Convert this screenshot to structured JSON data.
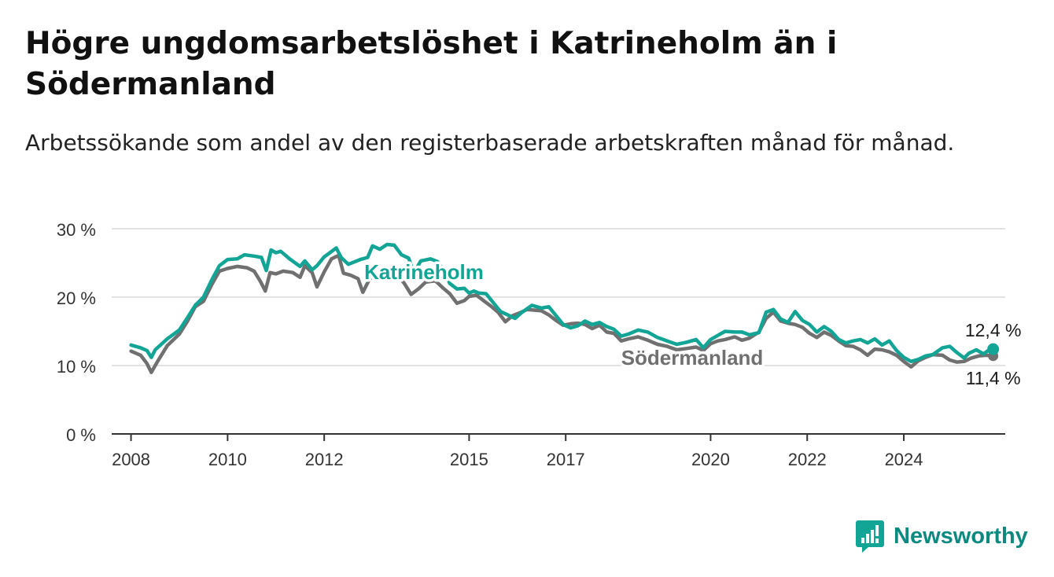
{
  "header": {
    "title": "Högre ungdomsarbetslöshet i Katrineholm än i Södermanland",
    "subtitle": "Arbetssökande som andel av den registerbaserade arbetskraften månad för månad."
  },
  "brand": {
    "name": "Newsworthy",
    "icon": "bar-chart-speech-bubble-icon",
    "color": "#0c8a80"
  },
  "chart_data": {
    "type": "line",
    "x_tick_labels": [
      "2008",
      "2010",
      "2012",
      "2015",
      "2017",
      "2020",
      "2022",
      "2024"
    ],
    "y_tick_labels": [
      "0 %",
      "10 %",
      "20 %",
      "30 %"
    ],
    "ylim": [
      0,
      30
    ],
    "xlim": [
      2007.6,
      2026.1
    ],
    "grid": "horizontal",
    "series": [
      {
        "name": "Katrineholm",
        "color": "#12a596",
        "end_label": "12,4 %",
        "points": [
          [
            2008.0,
            13.0
          ],
          [
            2008.2,
            12.6
          ],
          [
            2008.33,
            12.2
          ],
          [
            2008.42,
            11.2
          ],
          [
            2008.5,
            12.3
          ],
          [
            2008.75,
            13.9
          ],
          [
            2009.0,
            15.2
          ],
          [
            2009.17,
            17.0
          ],
          [
            2009.33,
            18.8
          ],
          [
            2009.5,
            20.0
          ],
          [
            2009.67,
            22.5
          ],
          [
            2009.83,
            24.6
          ],
          [
            2010.0,
            25.5
          ],
          [
            2010.2,
            25.6
          ],
          [
            2010.35,
            26.2
          ],
          [
            2010.55,
            26.0
          ],
          [
            2010.7,
            25.8
          ],
          [
            2010.8,
            23.9
          ],
          [
            2010.9,
            26.9
          ],
          [
            2011.0,
            26.5
          ],
          [
            2011.1,
            26.7
          ],
          [
            2011.3,
            25.5
          ],
          [
            2011.5,
            24.5
          ],
          [
            2011.6,
            25.3
          ],
          [
            2011.75,
            24.0
          ],
          [
            2011.85,
            24.6
          ],
          [
            2012.0,
            25.9
          ],
          [
            2012.1,
            26.4
          ],
          [
            2012.25,
            27.2
          ],
          [
            2012.35,
            25.8
          ],
          [
            2012.5,
            24.8
          ],
          [
            2012.75,
            25.5
          ],
          [
            2012.9,
            25.8
          ],
          [
            2013.0,
            27.5
          ],
          [
            2013.15,
            27.0
          ],
          [
            2013.3,
            27.7
          ],
          [
            2013.45,
            27.6
          ],
          [
            2013.6,
            26.2
          ],
          [
            2013.75,
            25.7
          ],
          [
            2013.85,
            23.5
          ],
          [
            2014.0,
            25.3
          ],
          [
            2014.2,
            25.6
          ],
          [
            2014.35,
            25.2
          ],
          [
            2014.5,
            23.7
          ],
          [
            2014.6,
            22.0
          ],
          [
            2014.75,
            21.2
          ],
          [
            2014.9,
            21.3
          ],
          [
            2015.0,
            20.6
          ],
          [
            2015.1,
            20.9
          ],
          [
            2015.2,
            20.6
          ],
          [
            2015.35,
            20.5
          ],
          [
            2015.5,
            19.2
          ],
          [
            2015.65,
            17.9
          ],
          [
            2015.8,
            17.4
          ],
          [
            2015.95,
            16.9
          ],
          [
            2016.1,
            17.8
          ],
          [
            2016.3,
            18.8
          ],
          [
            2016.5,
            18.4
          ],
          [
            2016.65,
            18.6
          ],
          [
            2016.8,
            17.3
          ],
          [
            2016.95,
            16.0
          ],
          [
            2017.1,
            15.5
          ],
          [
            2017.25,
            15.8
          ],
          [
            2017.4,
            16.5
          ],
          [
            2017.55,
            16.0
          ],
          [
            2017.7,
            16.3
          ],
          [
            2017.85,
            15.7
          ],
          [
            2018.0,
            15.3
          ],
          [
            2018.15,
            14.3
          ],
          [
            2018.3,
            14.6
          ],
          [
            2018.5,
            15.2
          ],
          [
            2018.7,
            14.9
          ],
          [
            2018.9,
            14.1
          ],
          [
            2019.1,
            13.6
          ],
          [
            2019.3,
            13.1
          ],
          [
            2019.5,
            13.4
          ],
          [
            2019.7,
            13.8
          ],
          [
            2019.85,
            12.6
          ],
          [
            2020.0,
            13.8
          ],
          [
            2020.15,
            14.4
          ],
          [
            2020.3,
            15.0
          ],
          [
            2020.5,
            14.9
          ],
          [
            2020.65,
            14.9
          ],
          [
            2020.8,
            14.5
          ],
          [
            2021.0,
            14.8
          ],
          [
            2021.15,
            17.8
          ],
          [
            2021.3,
            18.2
          ],
          [
            2021.45,
            16.8
          ],
          [
            2021.6,
            16.3
          ],
          [
            2021.75,
            17.9
          ],
          [
            2021.9,
            16.6
          ],
          [
            2022.05,
            16.0
          ],
          [
            2022.2,
            14.9
          ],
          [
            2022.35,
            15.7
          ],
          [
            2022.5,
            15.0
          ],
          [
            2022.65,
            13.8
          ],
          [
            2022.8,
            13.3
          ],
          [
            2022.95,
            13.6
          ],
          [
            2023.1,
            13.8
          ],
          [
            2023.25,
            13.3
          ],
          [
            2023.4,
            13.9
          ],
          [
            2023.55,
            13.0
          ],
          [
            2023.7,
            13.6
          ],
          [
            2023.85,
            12.2
          ],
          [
            2024.0,
            11.2
          ],
          [
            2024.15,
            10.6
          ],
          [
            2024.3,
            10.9
          ],
          [
            2024.45,
            11.4
          ],
          [
            2024.6,
            11.6
          ],
          [
            2024.8,
            12.6
          ],
          [
            2024.95,
            12.8
          ],
          [
            2025.1,
            11.9
          ],
          [
            2025.25,
            11.1
          ],
          [
            2025.35,
            11.8
          ],
          [
            2025.5,
            12.3
          ],
          [
            2025.65,
            11.7
          ],
          [
            2025.75,
            12.2
          ],
          [
            2025.85,
            12.4
          ]
        ]
      },
      {
        "name": "Södermanland",
        "color": "#707070",
        "end_label": "11,4 %",
        "points": [
          [
            2008.0,
            12.1
          ],
          [
            2008.2,
            11.5
          ],
          [
            2008.33,
            10.3
          ],
          [
            2008.42,
            9.0
          ],
          [
            2008.55,
            10.6
          ],
          [
            2008.75,
            12.9
          ],
          [
            2009.0,
            14.6
          ],
          [
            2009.17,
            16.5
          ],
          [
            2009.33,
            18.6
          ],
          [
            2009.5,
            19.4
          ],
          [
            2009.67,
            21.8
          ],
          [
            2009.83,
            23.8
          ],
          [
            2010.0,
            24.2
          ],
          [
            2010.2,
            24.5
          ],
          [
            2010.4,
            24.3
          ],
          [
            2010.55,
            23.8
          ],
          [
            2010.68,
            22.3
          ],
          [
            2010.78,
            20.9
          ],
          [
            2010.88,
            23.6
          ],
          [
            2011.0,
            23.4
          ],
          [
            2011.15,
            23.8
          ],
          [
            2011.35,
            23.6
          ],
          [
            2011.5,
            22.9
          ],
          [
            2011.6,
            24.6
          ],
          [
            2011.75,
            23.6
          ],
          [
            2011.85,
            21.5
          ],
          [
            2012.0,
            23.7
          ],
          [
            2012.15,
            25.6
          ],
          [
            2012.3,
            26.1
          ],
          [
            2012.4,
            23.5
          ],
          [
            2012.55,
            23.2
          ],
          [
            2012.7,
            22.7
          ],
          [
            2012.8,
            20.7
          ],
          [
            2012.95,
            22.8
          ],
          [
            2013.1,
            22.9
          ],
          [
            2013.3,
            23.5
          ],
          [
            2013.5,
            23.3
          ],
          [
            2013.65,
            22.1
          ],
          [
            2013.8,
            20.4
          ],
          [
            2013.95,
            21.2
          ],
          [
            2014.1,
            22.2
          ],
          [
            2014.3,
            22.4
          ],
          [
            2014.45,
            21.4
          ],
          [
            2014.6,
            20.5
          ],
          [
            2014.75,
            19.1
          ],
          [
            2014.9,
            19.5
          ],
          [
            2015.0,
            20.1
          ],
          [
            2015.15,
            20.3
          ],
          [
            2015.3,
            19.5
          ],
          [
            2015.45,
            18.7
          ],
          [
            2015.6,
            17.8
          ],
          [
            2015.75,
            16.4
          ],
          [
            2015.9,
            17.3
          ],
          [
            2016.05,
            17.7
          ],
          [
            2016.2,
            18.2
          ],
          [
            2016.35,
            18.1
          ],
          [
            2016.5,
            18.0
          ],
          [
            2016.65,
            17.4
          ],
          [
            2016.8,
            16.6
          ],
          [
            2016.95,
            15.9
          ],
          [
            2017.1,
            16.1
          ],
          [
            2017.25,
            16.2
          ],
          [
            2017.4,
            16.0
          ],
          [
            2017.55,
            15.4
          ],
          [
            2017.7,
            15.9
          ],
          [
            2017.85,
            14.9
          ],
          [
            2018.0,
            14.7
          ],
          [
            2018.15,
            13.6
          ],
          [
            2018.3,
            13.9
          ],
          [
            2018.5,
            14.2
          ],
          [
            2018.7,
            13.7
          ],
          [
            2018.9,
            13.1
          ],
          [
            2019.1,
            12.8
          ],
          [
            2019.3,
            12.3
          ],
          [
            2019.5,
            12.5
          ],
          [
            2019.7,
            12.7
          ],
          [
            2019.85,
            12.2
          ],
          [
            2020.0,
            13.2
          ],
          [
            2020.15,
            13.6
          ],
          [
            2020.3,
            13.8
          ],
          [
            2020.5,
            14.2
          ],
          [
            2020.65,
            13.7
          ],
          [
            2020.8,
            14.0
          ],
          [
            2021.0,
            14.9
          ],
          [
            2021.15,
            16.9
          ],
          [
            2021.3,
            17.8
          ],
          [
            2021.45,
            16.5
          ],
          [
            2021.6,
            16.2
          ],
          [
            2021.75,
            16.0
          ],
          [
            2021.9,
            15.6
          ],
          [
            2022.05,
            14.7
          ],
          [
            2022.2,
            14.1
          ],
          [
            2022.35,
            14.9
          ],
          [
            2022.5,
            14.4
          ],
          [
            2022.65,
            13.6
          ],
          [
            2022.8,
            12.9
          ],
          [
            2022.95,
            12.8
          ],
          [
            2023.1,
            12.3
          ],
          [
            2023.25,
            11.5
          ],
          [
            2023.4,
            12.4
          ],
          [
            2023.55,
            12.3
          ],
          [
            2023.7,
            12.0
          ],
          [
            2023.85,
            11.5
          ],
          [
            2024.0,
            10.6
          ],
          [
            2024.15,
            9.8
          ],
          [
            2024.3,
            10.7
          ],
          [
            2024.45,
            11.2
          ],
          [
            2024.6,
            11.6
          ],
          [
            2024.8,
            11.5
          ],
          [
            2024.95,
            10.8
          ],
          [
            2025.1,
            10.5
          ],
          [
            2025.25,
            10.6
          ],
          [
            2025.4,
            11.1
          ],
          [
            2025.55,
            11.4
          ],
          [
            2025.7,
            11.5
          ],
          [
            2025.85,
            11.4
          ]
        ]
      }
    ]
  }
}
